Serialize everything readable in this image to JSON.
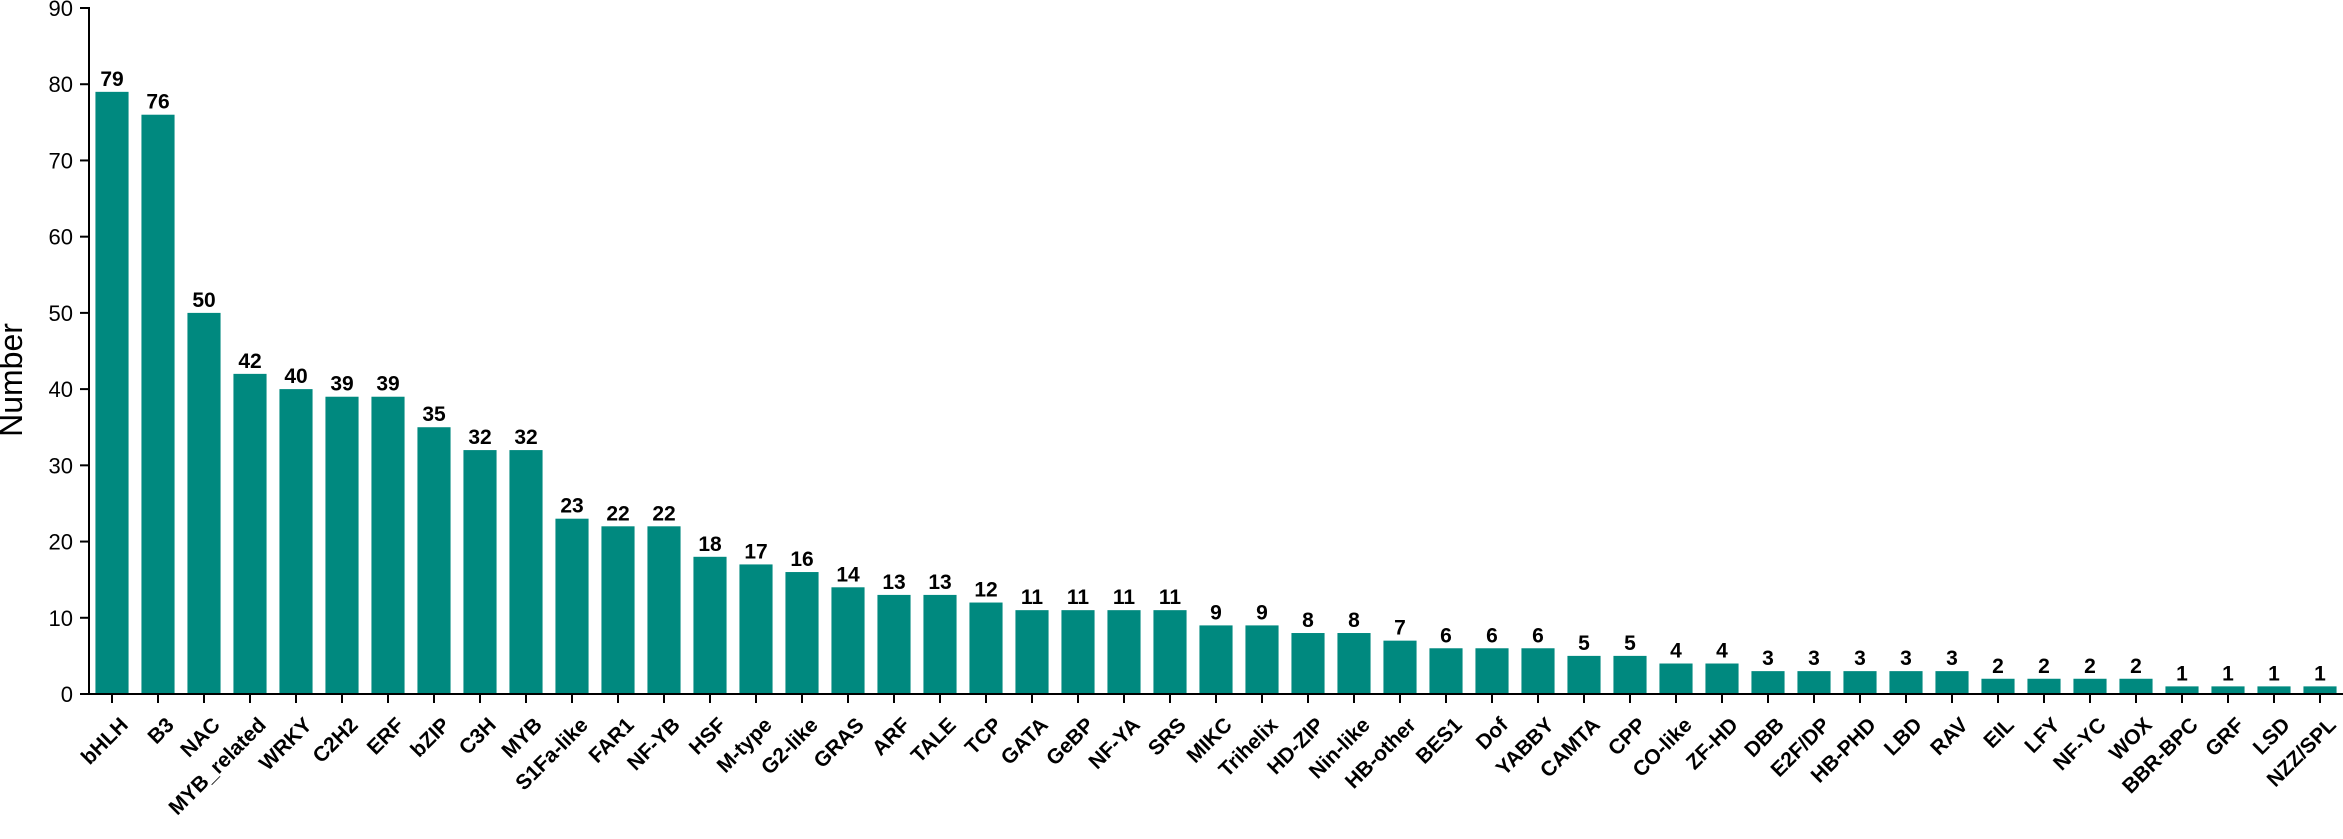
{
  "chart_data": {
    "type": "bar",
    "title": "",
    "xlabel": "",
    "ylabel": "Number",
    "ylim": [
      0,
      90
    ],
    "yticks": [
      0,
      10,
      20,
      30,
      40,
      50,
      60,
      70,
      80,
      90
    ],
    "grid": false,
    "bar_color": "#00897f",
    "categories": [
      "bHLH",
      "B3",
      "NAC",
      "MYB_related",
      "WRKY",
      "C2H2",
      "ERF",
      "bZIP",
      "C3H",
      "MYB",
      "S1Fa-like",
      "FAR1",
      "NF-YB",
      "HSF",
      "M-type",
      "G2-like",
      "GRAS",
      "ARF",
      "TALE",
      "TCP",
      "GATA",
      "GeBP",
      "NF-YA",
      "SRS",
      "MIKC",
      "Trihelix",
      "HD-ZIP",
      "Nin-like",
      "HB-other",
      "BES1",
      "Dof",
      "YABBY",
      "CAMTA",
      "CPP",
      "CO-like",
      "ZF-HD",
      "DBB",
      "E2F/DP",
      "HB-PHD",
      "LBD",
      "RAV",
      "EIL",
      "LFY",
      "NF-YC",
      "WOX",
      "BBR-BPC",
      "GRF",
      "LSD",
      "NZZ/SPL"
    ],
    "values": [
      79,
      76,
      50,
      42,
      40,
      39,
      39,
      35,
      32,
      32,
      23,
      22,
      22,
      18,
      17,
      16,
      14,
      13,
      13,
      12,
      11,
      11,
      11,
      11,
      9,
      9,
      8,
      8,
      7,
      6,
      6,
      6,
      5,
      5,
      4,
      4,
      3,
      3,
      3,
      3,
      3,
      2,
      2,
      2,
      2,
      1,
      1,
      1,
      1
    ]
  }
}
